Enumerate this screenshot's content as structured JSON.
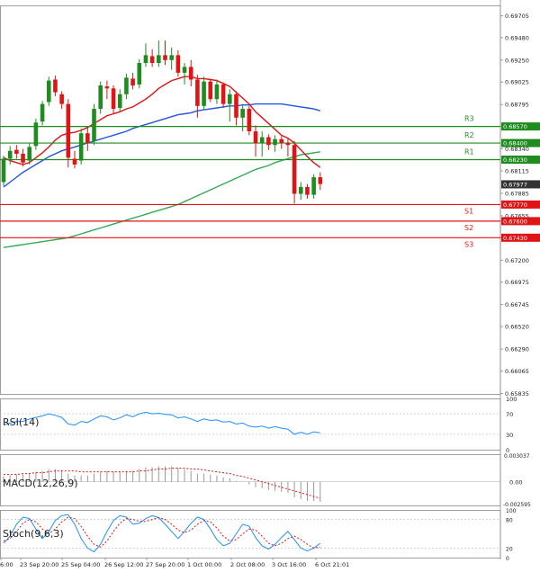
{
  "chart_data": {
    "type": "candlestick",
    "main": {
      "yaxis_ticks": [
        "0.69705",
        "0.69480",
        "0.69250",
        "0.69025",
        "0.68795",
        "0.68570",
        "0.68340",
        "0.68115",
        "0.67885",
        "0.67655",
        "0.67430",
        "0.67200",
        "0.66975",
        "0.66745",
        "0.66520",
        "0.66290",
        "0.66065",
        "0.65835"
      ],
      "ylim": [
        0.6583,
        0.6981
      ],
      "candles": [
        {
          "o": 0.68,
          "h": 0.6827,
          "l": 0.6796,
          "c": 0.6824
        },
        {
          "o": 0.6824,
          "h": 0.6837,
          "l": 0.6818,
          "c": 0.6832
        },
        {
          "o": 0.6833,
          "h": 0.6838,
          "l": 0.6824,
          "c": 0.6829
        },
        {
          "o": 0.6829,
          "h": 0.6834,
          "l": 0.6816,
          "c": 0.682
        },
        {
          "o": 0.6822,
          "h": 0.684,
          "l": 0.6818,
          "c": 0.6836
        },
        {
          "o": 0.6837,
          "h": 0.6865,
          "l": 0.6833,
          "c": 0.6861
        },
        {
          "o": 0.6862,
          "h": 0.6883,
          "l": 0.6858,
          "c": 0.688
        },
        {
          "o": 0.6882,
          "h": 0.6908,
          "l": 0.6878,
          "c": 0.6904
        },
        {
          "o": 0.6905,
          "h": 0.6909,
          "l": 0.6888,
          "c": 0.6892
        },
        {
          "o": 0.689,
          "h": 0.6893,
          "l": 0.6875,
          "c": 0.688
        },
        {
          "o": 0.688,
          "h": 0.6885,
          "l": 0.6815,
          "c": 0.6825
        },
        {
          "o": 0.6824,
          "h": 0.6832,
          "l": 0.6814,
          "c": 0.6818
        },
        {
          "o": 0.6822,
          "h": 0.6855,
          "l": 0.6818,
          "c": 0.685
        },
        {
          "o": 0.685,
          "h": 0.6856,
          "l": 0.6832,
          "c": 0.684
        },
        {
          "o": 0.6842,
          "h": 0.688,
          "l": 0.6838,
          "c": 0.6875
        },
        {
          "o": 0.6875,
          "h": 0.6903,
          "l": 0.687,
          "c": 0.6899
        },
        {
          "o": 0.6898,
          "h": 0.6904,
          "l": 0.6885,
          "c": 0.6896
        },
        {
          "o": 0.6896,
          "h": 0.6899,
          "l": 0.687,
          "c": 0.6875
        },
        {
          "o": 0.6876,
          "h": 0.6895,
          "l": 0.6872,
          "c": 0.689
        },
        {
          "o": 0.689,
          "h": 0.6911,
          "l": 0.6885,
          "c": 0.6907
        },
        {
          "o": 0.6906,
          "h": 0.6912,
          "l": 0.6895,
          "c": 0.6899
        },
        {
          "o": 0.69,
          "h": 0.6926,
          "l": 0.6896,
          "c": 0.6922
        },
        {
          "o": 0.6922,
          "h": 0.6942,
          "l": 0.6918,
          "c": 0.693
        },
        {
          "o": 0.6929,
          "h": 0.6936,
          "l": 0.6918,
          "c": 0.6922
        },
        {
          "o": 0.6922,
          "h": 0.6945,
          "l": 0.6918,
          "c": 0.693
        },
        {
          "o": 0.693,
          "h": 0.6945,
          "l": 0.692,
          "c": 0.6925
        },
        {
          "o": 0.6925,
          "h": 0.6938,
          "l": 0.6915,
          "c": 0.693
        },
        {
          "o": 0.693,
          "h": 0.6935,
          "l": 0.6908,
          "c": 0.6912
        },
        {
          "o": 0.6912,
          "h": 0.6922,
          "l": 0.69,
          "c": 0.6918
        },
        {
          "o": 0.6918,
          "h": 0.6925,
          "l": 0.6898,
          "c": 0.6905
        },
        {
          "o": 0.6905,
          "h": 0.691,
          "l": 0.6866,
          "c": 0.6878
        },
        {
          "o": 0.6878,
          "h": 0.6908,
          "l": 0.6874,
          "c": 0.6903
        },
        {
          "o": 0.6903,
          "h": 0.6906,
          "l": 0.6882,
          "c": 0.6885
        },
        {
          "o": 0.6885,
          "h": 0.6905,
          "l": 0.688,
          "c": 0.69
        },
        {
          "o": 0.69,
          "h": 0.6902,
          "l": 0.6876,
          "c": 0.688
        },
        {
          "o": 0.688,
          "h": 0.6895,
          "l": 0.6862,
          "c": 0.689
        },
        {
          "o": 0.689,
          "h": 0.6893,
          "l": 0.6858,
          "c": 0.6866
        },
        {
          "o": 0.6866,
          "h": 0.688,
          "l": 0.6852,
          "c": 0.6875
        },
        {
          "o": 0.6875,
          "h": 0.6878,
          "l": 0.6848,
          "c": 0.6852
        },
        {
          "o": 0.6852,
          "h": 0.6858,
          "l": 0.6826,
          "c": 0.684
        },
        {
          "o": 0.684,
          "h": 0.6852,
          "l": 0.6826,
          "c": 0.6846
        },
        {
          "o": 0.6846,
          "h": 0.6849,
          "l": 0.6833,
          "c": 0.6838
        },
        {
          "o": 0.6838,
          "h": 0.6848,
          "l": 0.6831,
          "c": 0.6844
        },
        {
          "o": 0.6844,
          "h": 0.6847,
          "l": 0.6834,
          "c": 0.684
        },
        {
          "o": 0.684,
          "h": 0.6845,
          "l": 0.6826,
          "c": 0.6838
        },
        {
          "o": 0.6838,
          "h": 0.6842,
          "l": 0.6778,
          "c": 0.6788
        },
        {
          "o": 0.6788,
          "h": 0.68,
          "l": 0.6782,
          "c": 0.6795
        },
        {
          "o": 0.6795,
          "h": 0.6798,
          "l": 0.6783,
          "c": 0.6787
        },
        {
          "o": 0.6787,
          "h": 0.6808,
          "l": 0.6783,
          "c": 0.6805
        },
        {
          "o": 0.6805,
          "h": 0.681,
          "l": 0.6792,
          "c": 0.6798
        }
      ],
      "ma_fast": [
        0.6825,
        0.6822,
        0.682,
        0.6818,
        0.682,
        0.6825,
        0.683,
        0.6836,
        0.6843,
        0.6848,
        0.685,
        0.6851,
        0.6853,
        0.6856,
        0.686,
        0.6864,
        0.6868,
        0.687,
        0.6872,
        0.6875,
        0.6877,
        0.6881,
        0.6885,
        0.689,
        0.6896,
        0.69,
        0.6904,
        0.6906,
        0.6908,
        0.6908,
        0.6906,
        0.6906,
        0.6905,
        0.6904,
        0.6901,
        0.6898,
        0.6892,
        0.6886,
        0.688,
        0.6872,
        0.6866,
        0.686,
        0.6854,
        0.6848,
        0.6845,
        0.684,
        0.6833,
        0.6826,
        0.682,
        0.6815
      ],
      "ma_mid": [
        0.6795,
        0.68,
        0.6805,
        0.681,
        0.6814,
        0.6818,
        0.6822,
        0.6826,
        0.6829,
        0.6832,
        0.6834,
        0.6836,
        0.6838,
        0.684,
        0.6842,
        0.6844,
        0.6846,
        0.6848,
        0.685,
        0.6852,
        0.6855,
        0.6857,
        0.6859,
        0.6861,
        0.6863,
        0.6865,
        0.6867,
        0.6869,
        0.687,
        0.6871,
        0.6873,
        0.6874,
        0.6875,
        0.6876,
        0.6877,
        0.6878,
        0.6878,
        0.6879,
        0.6879,
        0.688,
        0.688,
        0.688,
        0.688,
        0.688,
        0.6879,
        0.6878,
        0.6877,
        0.6876,
        0.6875,
        0.6873
      ],
      "ma_slow": [
        0.6733,
        0.6734,
        0.6735,
        0.6736,
        0.6737,
        0.6738,
        0.6739,
        0.674,
        0.6741,
        0.6742,
        0.6743,
        0.6745,
        0.6747,
        0.6749,
        0.6751,
        0.6753,
        0.6755,
        0.6757,
        0.6759,
        0.6761,
        0.6763,
        0.6765,
        0.6767,
        0.6769,
        0.6771,
        0.6773,
        0.6775,
        0.6777,
        0.678,
        0.6783,
        0.6786,
        0.6789,
        0.6792,
        0.6795,
        0.6798,
        0.6801,
        0.6804,
        0.6807,
        0.681,
        0.6813,
        0.6815,
        0.6817,
        0.682,
        0.6822,
        0.6824,
        0.6826,
        0.6828,
        0.6829,
        0.683,
        0.6831
      ],
      "levels": [
        {
          "name": "R3",
          "value": 0.6857,
          "color": "#1e8c1e",
          "label": "0.68570"
        },
        {
          "name": "R2",
          "value": 0.684,
          "color": "#1e8c1e",
          "label": "0.68400"
        },
        {
          "name": "R1",
          "value": 0.6823,
          "color": "#1e8c1e",
          "label": "0.68230"
        },
        {
          "name": "S1",
          "value": 0.6777,
          "color": "#e01414",
          "label": "0.67770"
        },
        {
          "name": "S2",
          "value": 0.676,
          "color": "#e01414",
          "label": "0.67600"
        },
        {
          "name": "S3",
          "value": 0.6743,
          "color": "#e01414",
          "label": "0.67430"
        }
      ],
      "current_price": {
        "value": 0.67977,
        "label": "0.67977"
      }
    },
    "rsi": {
      "label": "RSI(14)",
      "ylim": [
        0,
        100
      ],
      "ticks": [
        "100",
        "70",
        "30",
        "0"
      ],
      "values": [
        48,
        52,
        55,
        55,
        60,
        63,
        66,
        70,
        67,
        63,
        50,
        48,
        55,
        53,
        60,
        66,
        64,
        58,
        62,
        68,
        64,
        70,
        73,
        70,
        71,
        69,
        68,
        62,
        64,
        60,
        55,
        60,
        57,
        58,
        54,
        55,
        50,
        52,
        46,
        44,
        46,
        42,
        45,
        42,
        40,
        30,
        34,
        30,
        35,
        33
      ]
    },
    "macd": {
      "label": "MACD(12,26,9)",
      "ylim": [
        -0.00259,
        0.00303
      ],
      "ticks": [
        "0.003037",
        "0.00",
        "-0.002595"
      ],
      "hist": [
        0.0006,
        0.0007,
        0.0008,
        0.0008,
        0.0009,
        0.0011,
        0.0012,
        0.0014,
        0.0014,
        0.0013,
        0.0009,
        0.0007,
        0.0007,
        0.0007,
        0.0009,
        0.0011,
        0.0012,
        0.0011,
        0.0011,
        0.0012,
        0.0012,
        0.0014,
        0.0016,
        0.0016,
        0.0017,
        0.0017,
        0.0017,
        0.0015,
        0.0014,
        0.0012,
        0.0009,
        0.0009,
        0.0008,
        0.0007,
        0.0005,
        0.0004,
        0.0001,
        0.0,
        -0.0003,
        -0.0006,
        -0.0007,
        -0.0009,
        -0.001,
        -0.0011,
        -0.0012,
        -0.0017,
        -0.0019,
        -0.0021,
        -0.0021,
        -0.0022
      ],
      "signal": [
        0.0008,
        0.0008,
        0.0008,
        0.0009,
        0.0009,
        0.001,
        0.001,
        0.0011,
        0.0012,
        0.0012,
        0.0012,
        0.0012,
        0.0011,
        0.0011,
        0.0011,
        0.0011,
        0.0011,
        0.0011,
        0.0011,
        0.0011,
        0.0011,
        0.0012,
        0.0012,
        0.0013,
        0.0014,
        0.0014,
        0.0015,
        0.0015,
        0.0015,
        0.0014,
        0.0014,
        0.0013,
        0.0012,
        0.0011,
        0.001,
        0.0009,
        0.0007,
        0.0006,
        0.0004,
        0.0002,
        0.0,
        -0.0002,
        -0.0004,
        -0.0006,
        -0.0008,
        -0.001,
        -0.0012,
        -0.0014,
        -0.0016,
        -0.0018
      ]
    },
    "stoch": {
      "label": "Stoch(9,6,3)",
      "ylim": [
        0,
        100
      ],
      "ticks": [
        "100",
        "80",
        "20",
        "0"
      ],
      "k": [
        30,
        45,
        70,
        85,
        82,
        60,
        40,
        55,
        78,
        88,
        90,
        70,
        40,
        20,
        12,
        28,
        55,
        78,
        88,
        85,
        70,
        72,
        82,
        88,
        84,
        70,
        55,
        40,
        55,
        72,
        85,
        80,
        60,
        38,
        25,
        30,
        50,
        70,
        66,
        42,
        25,
        18,
        28,
        42,
        55,
        38,
        20,
        14,
        20,
        30
      ],
      "d": [
        35,
        40,
        55,
        72,
        80,
        75,
        60,
        50,
        60,
        75,
        85,
        82,
        65,
        45,
        28,
        22,
        35,
        55,
        72,
        82,
        80,
        76,
        76,
        80,
        84,
        80,
        70,
        58,
        52,
        58,
        70,
        78,
        75,
        62,
        45,
        35,
        38,
        50,
        60,
        58,
        45,
        30,
        25,
        30,
        40,
        45,
        38,
        28,
        20,
        22
      ]
    },
    "xaxis_labels": [
      "6:00",
      "23 Sep 20:00",
      "25 Sep 04:00",
      "26 Sep 12:00",
      "27 Sep 20:00",
      "1 Oct 00:00",
      "2 Oct 08:00",
      "3 Oct 16:00",
      "6 Oct 21:01"
    ]
  },
  "colors": {
    "up": "#1e8c1e",
    "down": "#e01414",
    "ma_fast": "#e01414",
    "ma_mid": "#2255dd",
    "ma_slow": "#33aa55",
    "price_tag": "#333333",
    "indicator_line": "#1e90ff",
    "signal": "#e01414"
  }
}
